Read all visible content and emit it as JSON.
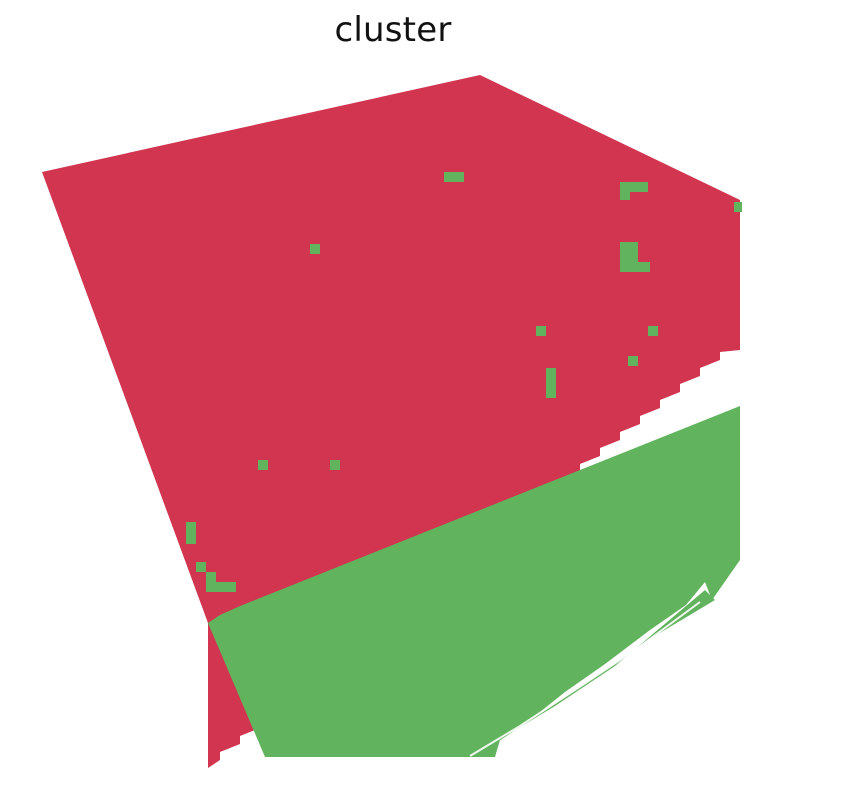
{
  "title": "cluster",
  "colors": {
    "cluster_a": "#d1354f",
    "cluster_b": "#61b35d",
    "background": "#ffffff"
  }
}
